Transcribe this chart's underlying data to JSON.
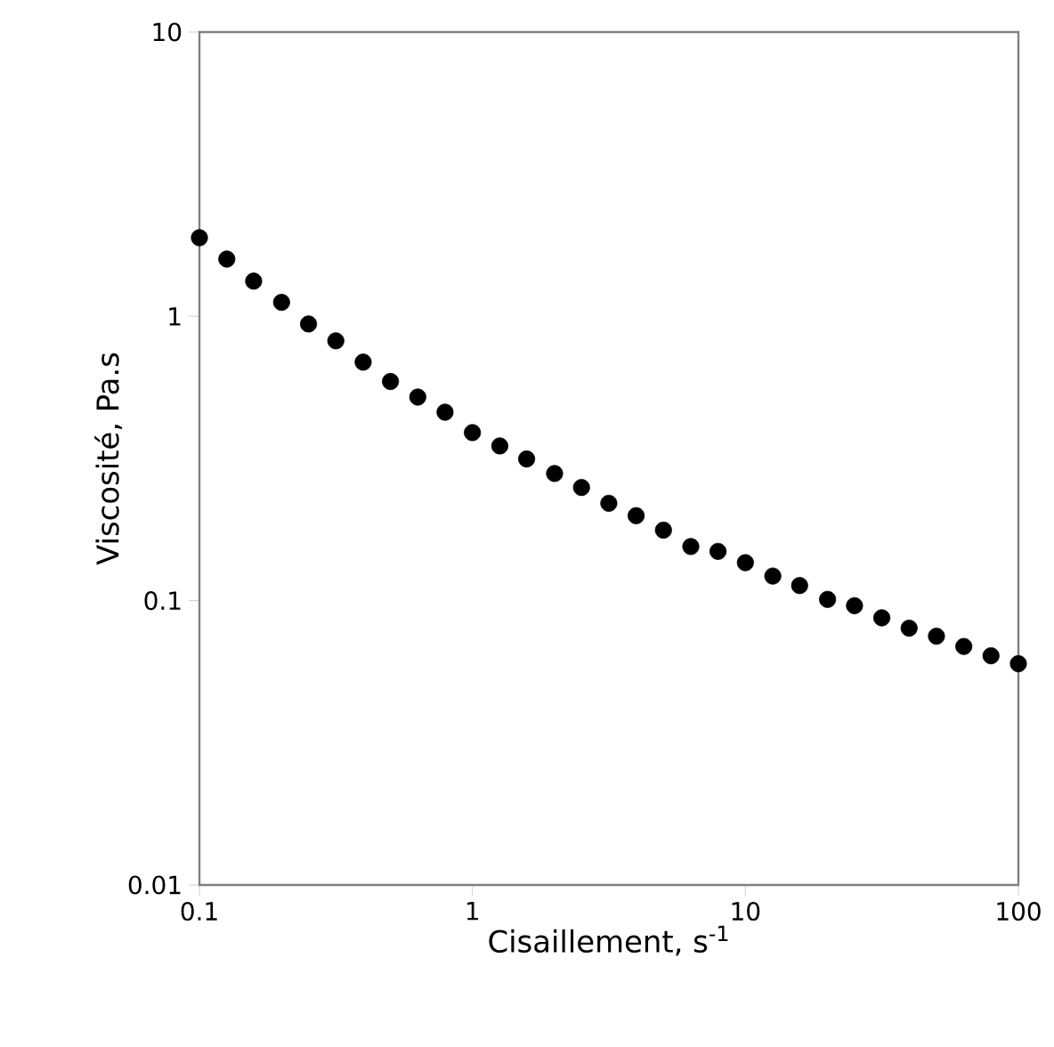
{
  "chart_data": {
    "type": "scatter",
    "xlabel": "Cisaillement, s$^{-1}$",
    "ylabel": "Viscosité, Pa.s",
    "x": [
      0.1,
      0.126,
      0.158,
      0.2,
      0.251,
      0.316,
      0.398,
      0.501,
      0.631,
      0.794,
      1,
      1.26,
      1.58,
      2,
      2.51,
      3.16,
      3.98,
      5.01,
      6.31,
      7.94,
      10,
      12.6,
      15.8,
      20,
      25.1,
      31.6,
      39.8,
      50.1,
      63.1,
      79.4,
      100
    ],
    "series": [
      {
        "color": "#000000",
        "values": [
          1.89,
          1.59,
          1.33,
          1.12,
          0.94,
          0.82,
          0.69,
          0.59,
          0.52,
          0.46,
          0.39,
          0.35,
          0.315,
          0.28,
          0.25,
          0.22,
          0.199,
          0.177,
          0.155,
          0.149,
          0.136,
          0.122,
          0.113,
          0.101,
          0.096,
          0.087,
          0.08,
          0.075,
          0.069,
          0.064,
          0.06
        ]
      }
    ],
    "log": "xy",
    "xlim": [
      0.1,
      100
    ],
    "ylim": [
      0.01,
      10
    ],
    "xticks": [
      0.1,
      1,
      10,
      100
    ],
    "yticks": [
      0.01,
      0.1,
      1,
      10
    ],
    "marker": "circle",
    "grid": false
  }
}
